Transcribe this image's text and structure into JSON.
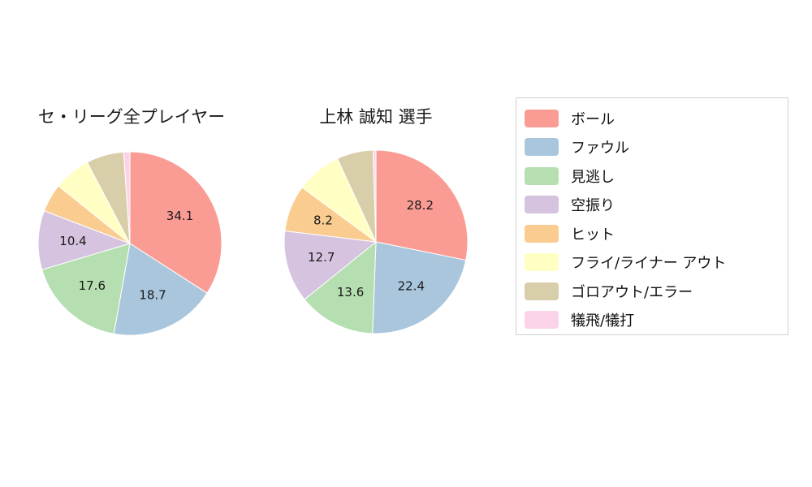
{
  "page": {
    "background": "#ffffff"
  },
  "palette": [
    "#FA9C94",
    "#A9C6DD",
    "#B5DFB0",
    "#D5C3E0",
    "#FACC90",
    "#FFFFC3",
    "#D8CEAA",
    "#FBD3E8"
  ],
  "legend": {
    "position": "right",
    "items": [
      {
        "label": "ボール"
      },
      {
        "label": "ファウル"
      },
      {
        "label": "見逃し"
      },
      {
        "label": "空振り"
      },
      {
        "label": "ヒット"
      },
      {
        "label": "フライ/ライナー アウト"
      },
      {
        "label": "ゴロアウト/エラー"
      },
      {
        "label": "犠飛/犠打"
      }
    ]
  },
  "chart_data": [
    {
      "type": "pie",
      "title": "セ・リーグ全プレイヤー",
      "categories": [
        "ボール",
        "ファウル",
        "見逃し",
        "空振り",
        "ヒット",
        "フライ/ライナー アウト",
        "ゴロアウト/エラー",
        "犠飛/犠打"
      ],
      "values": [
        34.1,
        18.7,
        17.6,
        10.4,
        5.0,
        6.5,
        6.6,
        1.1
      ],
      "value_labels": [
        "34.1",
        "18.7",
        "17.6",
        "10.4",
        null,
        null,
        null,
        null
      ],
      "start_angle": "top",
      "direction": "clockwise",
      "units": "percent"
    },
    {
      "type": "pie",
      "title": "上林 誠知  選手",
      "categories": [
        "ボール",
        "ファウル",
        "見逃し",
        "空振り",
        "ヒット",
        "フライ/ライナー アウト",
        "ゴロアウト/エラー",
        "犠飛/犠打"
      ],
      "values": [
        28.2,
        22.4,
        13.6,
        12.7,
        8.2,
        8.0,
        6.4,
        0.5
      ],
      "value_labels": [
        "28.2",
        "22.4",
        "13.6",
        "12.7",
        "8.2",
        null,
        null,
        null
      ],
      "start_angle": "top",
      "direction": "clockwise",
      "units": "percent"
    }
  ]
}
